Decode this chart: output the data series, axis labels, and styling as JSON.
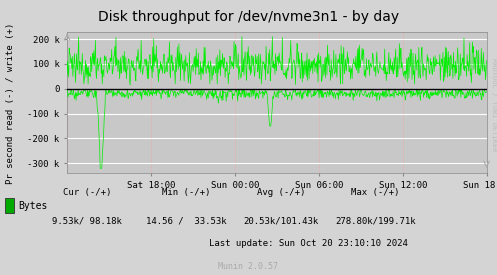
{
  "title": "Disk throughput for /dev/nvme3n1 - by day",
  "ylabel": "Pr second read (-) / write (+)",
  "xlabel_ticks": [
    "Sat 18:00",
    "Sun 00:00",
    "Sun 06:00",
    "Sun 12:00",
    "Sun 18:00"
  ],
  "ylim": [
    -340000,
    230000
  ],
  "yticks": [
    -300000,
    -200000,
    -100000,
    0,
    100000,
    200000
  ],
  "ytick_labels": [
    "-300 k",
    "-200 k",
    "-100 k",
    "0",
    "100 k",
    "200 k"
  ],
  "bg_color": "#c8c8c8",
  "plot_bg_color": "#c8c8c8",
  "outer_bg_color": "#d4d4d4",
  "grid_major_color": "#ffffff",
  "grid_minor_color": "#ff9999",
  "line_color": "#00ee00",
  "zero_line_color": "#000000",
  "legend_label": "Bytes",
  "legend_color": "#00aa00",
  "cur_label": "Cur (-/+)",
  "cur_val": "9.53k/ 98.18k",
  "min_label": "Min (-/+)",
  "min_val": "14.56 /  33.53k",
  "avg_label": "Avg (-/+)",
  "avg_val": "20.53k/101.43k",
  "max_label": "Max (-/+)",
  "max_val": "278.80k/199.71k",
  "last_update": "Last update: Sun Oct 20 23:10:10 2024",
  "munin_label": "Munin 2.0.57",
  "rrdtool_label": "RRDTOOL / TOBI OETIKER",
  "num_points": 800
}
